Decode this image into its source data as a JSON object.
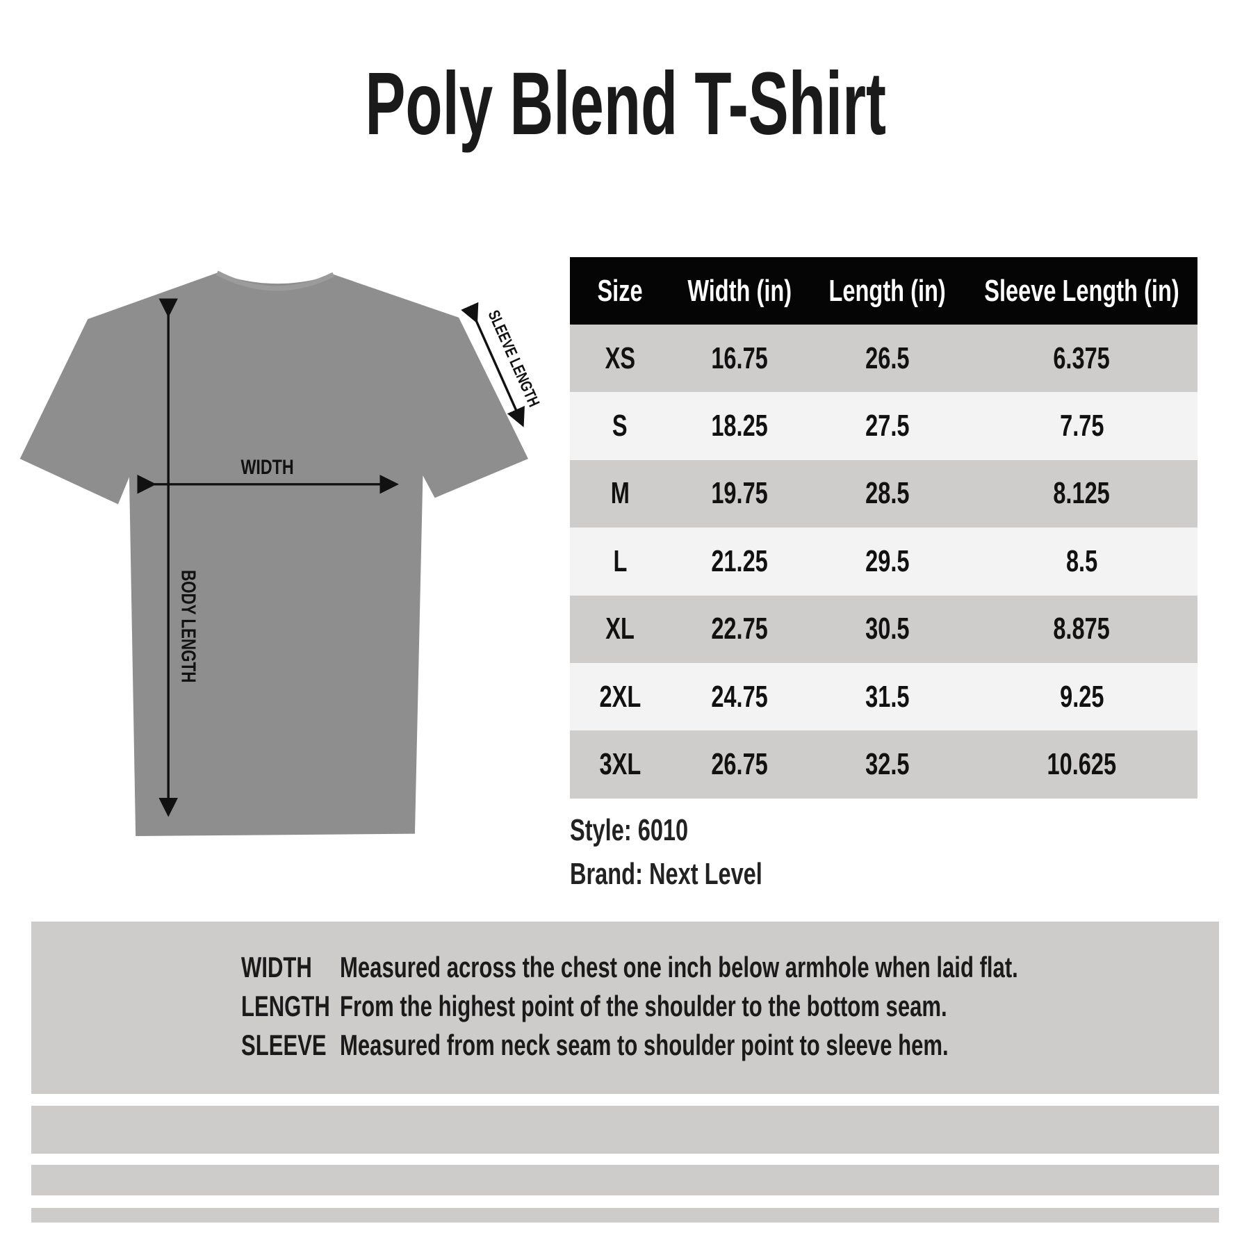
{
  "title": "Poly Blend T-Shirt",
  "diagram": {
    "labels": {
      "width": "WIDTH",
      "body_length": "BODY LENGTH",
      "sleeve_length": "SLEEVE LENGTH"
    },
    "shirt_color": "#8e8e8e"
  },
  "table": {
    "headers": [
      "Size",
      "Width (in)",
      "Length (in)",
      "Sleeve Length (in)"
    ],
    "rows": [
      [
        "XS",
        "16.75",
        "26.5",
        "6.375"
      ],
      [
        "S",
        "18.25",
        "27.5",
        "7.75"
      ],
      [
        "M",
        "19.75",
        "28.5",
        "8.125"
      ],
      [
        "L",
        "21.25",
        "29.5",
        "8.5"
      ],
      [
        "XL",
        "22.75",
        "30.5",
        "8.875"
      ],
      [
        "2XL",
        "24.75",
        "31.5",
        "9.25"
      ],
      [
        "3XL",
        "26.75",
        "32.5",
        "10.625"
      ]
    ],
    "colors": {
      "header": "#050505",
      "odd_row": "#cfcccc",
      "even_row": "#f4f3f4"
    }
  },
  "meta": {
    "style": "Style: 6010",
    "brand": "Brand: Next Level"
  },
  "definitions": [
    {
      "term": "WIDTH",
      "text": "Measured across the chest one inch below armhole when laid flat."
    },
    {
      "term": "LENGTH",
      "text": "From the highest point of the shoulder to the bottom seam."
    },
    {
      "term": "SLEEVE",
      "text": "Measured from neck seam to shoulder point to sleeve hem."
    }
  ]
}
